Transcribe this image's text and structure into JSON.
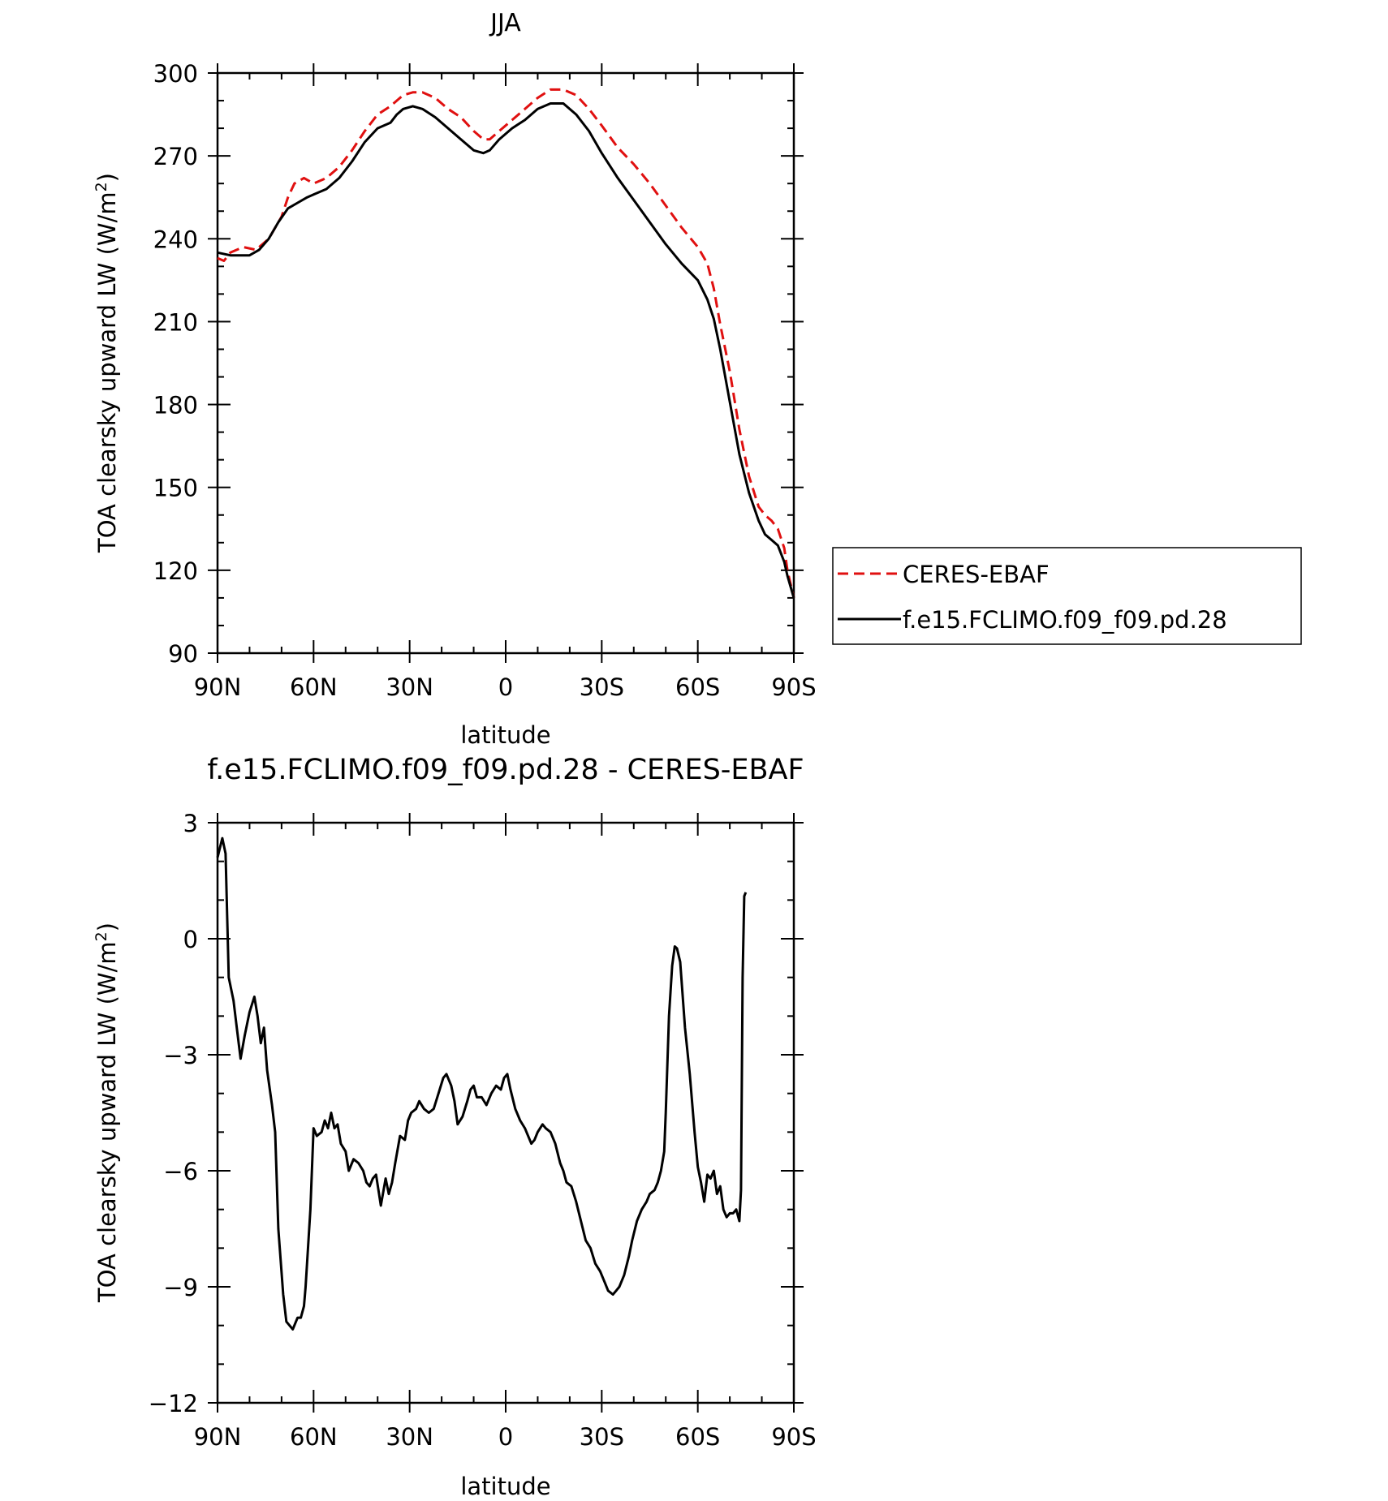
{
  "chart_data": [
    {
      "type": "line",
      "title": "JJA",
      "xlabel": "latitude",
      "ylabel": "TOA clearsky upward LW (W/m²)",
      "ylabel_main": "TOA clearsky upward LW (W/m",
      "ylabel_sup": "2",
      "ylabel_tail": ")",
      "xlim": [
        90,
        -90
      ],
      "ylim": [
        90,
        300
      ],
      "xticks": [
        90,
        60,
        30,
        0,
        -30,
        -60,
        -90
      ],
      "xtick_labels": [
        "90N",
        "60N",
        "30N",
        "0",
        "30S",
        "60S",
        "90S"
      ],
      "yticks": [
        90,
        120,
        150,
        180,
        210,
        240,
        270,
        300
      ],
      "ytick_labels": [
        "90",
        "120",
        "150",
        "180",
        "210",
        "240",
        "270",
        "300"
      ],
      "legend_position": "right",
      "series": [
        {
          "name": "CERES-EBAF",
          "color": "#e01010",
          "dash": "dashed",
          "points": [
            [
              90,
              233
            ],
            [
              88,
              232
            ],
            [
              86,
              235
            ],
            [
              82,
              237
            ],
            [
              78,
              236
            ],
            [
              74,
              240
            ],
            [
              70,
              248
            ],
            [
              68,
              255
            ],
            [
              66,
              260
            ],
            [
              63,
              262
            ],
            [
              60,
              260
            ],
            [
              56,
              262
            ],
            [
              52,
              266
            ],
            [
              48,
              272
            ],
            [
              44,
              279
            ],
            [
              40,
              285
            ],
            [
              36,
              288
            ],
            [
              34,
              290
            ],
            [
              32,
              292
            ],
            [
              29,
              293
            ],
            [
              26,
              293
            ],
            [
              22,
              291
            ],
            [
              18,
              287
            ],
            [
              14,
              284
            ],
            [
              10,
              279
            ],
            [
              7,
              276
            ],
            [
              5,
              276
            ],
            [
              2,
              279
            ],
            [
              -2,
              283
            ],
            [
              -6,
              287
            ],
            [
              -10,
              291
            ],
            [
              -14,
              294
            ],
            [
              -18,
              294
            ],
            [
              -22,
              292
            ],
            [
              -26,
              287
            ],
            [
              -30,
              281
            ],
            [
              -35,
              273
            ],
            [
              -40,
              267
            ],
            [
              -45,
              260
            ],
            [
              -50,
              252
            ],
            [
              -55,
              244
            ],
            [
              -60,
              237
            ],
            [
              -63,
              231
            ],
            [
              -65,
              222
            ],
            [
              -67,
              209
            ],
            [
              -70,
              192
            ],
            [
              -73,
              171
            ],
            [
              -76,
              154
            ],
            [
              -79,
              143
            ],
            [
              -81,
              140
            ],
            [
              -83,
              138
            ],
            [
              -85,
              135
            ],
            [
              -87,
              128
            ],
            [
              -88,
              120
            ],
            [
              -90,
              110
            ]
          ]
        },
        {
          "name": "f.e15.FCLIMO.f09_f09.pd.28",
          "color": "#000000",
          "dash": "solid",
          "points": [
            [
              90,
              235
            ],
            [
              86,
              234
            ],
            [
              84,
              234
            ],
            [
              80,
              234
            ],
            [
              77,
              236
            ],
            [
              74,
              240
            ],
            [
              71,
              246
            ],
            [
              68,
              251
            ],
            [
              65,
              253
            ],
            [
              62,
              255
            ],
            [
              60,
              256
            ],
            [
              56,
              258
            ],
            [
              52,
              262
            ],
            [
              48,
              268
            ],
            [
              44,
              275
            ],
            [
              40,
              280
            ],
            [
              36,
              282
            ],
            [
              34,
              285
            ],
            [
              32,
              287
            ],
            [
              29,
              288
            ],
            [
              26,
              287
            ],
            [
              22,
              284
            ],
            [
              18,
              280
            ],
            [
              14,
              276
            ],
            [
              10,
              272
            ],
            [
              7,
              271
            ],
            [
              5,
              272
            ],
            [
              2,
              276
            ],
            [
              -2,
              280
            ],
            [
              -6,
              283
            ],
            [
              -10,
              287
            ],
            [
              -14,
              289
            ],
            [
              -18,
              289
            ],
            [
              -22,
              285
            ],
            [
              -26,
              279
            ],
            [
              -30,
              271
            ],
            [
              -35,
              262
            ],
            [
              -40,
              254
            ],
            [
              -45,
              246
            ],
            [
              -50,
              238
            ],
            [
              -55,
              231
            ],
            [
              -60,
              225
            ],
            [
              -63,
              218
            ],
            [
              -65,
              211
            ],
            [
              -67,
              200
            ],
            [
              -70,
              181
            ],
            [
              -73,
              162
            ],
            [
              -76,
              148
            ],
            [
              -79,
              138
            ],
            [
              -81,
              133
            ],
            [
              -83,
              131
            ],
            [
              -85,
              129
            ],
            [
              -87,
              123
            ],
            [
              -88,
              118
            ],
            [
              -90,
              110
            ]
          ]
        }
      ]
    },
    {
      "type": "line",
      "title": "f.e15.FCLIMO.f09_f09.pd.28 - CERES-EBAF",
      "xlabel": "latitude",
      "ylabel": "TOA clearsky upward LW (W/m²)",
      "ylabel_main": "TOA clearsky upward LW (W/m",
      "ylabel_sup": "2",
      "ylabel_tail": ")",
      "xlim": [
        90,
        -90
      ],
      "ylim": [
        -12,
        3
      ],
      "xticks": [
        90,
        60,
        30,
        0,
        -30,
        -60,
        -90
      ],
      "xtick_labels": [
        "90N",
        "60N",
        "30N",
        "0",
        "30S",
        "60S",
        "90S"
      ],
      "yticks": [
        -12,
        -9,
        -6,
        -3,
        0,
        3
      ],
      "ytick_labels": [
        "−12",
        "−9",
        "−6",
        "−3",
        "0",
        "3"
      ],
      "series": [
        {
          "color": "#000000",
          "dash": "solid",
          "points": [
            [
              90,
              2.1
            ],
            [
              88.5,
              2.6
            ],
            [
              87.5,
              2.2
            ],
            [
              86.5,
              -1
            ],
            [
              85,
              -1.6
            ],
            [
              84,
              -2.3
            ],
            [
              82.8,
              -3.1
            ],
            [
              81.5,
              -2.5
            ],
            [
              80,
              -1.9
            ],
            [
              78.5,
              -1.5
            ],
            [
              77.5,
              -2
            ],
            [
              76.5,
              -2.7
            ],
            [
              75.5,
              -2.3
            ],
            [
              74.5,
              -3.4
            ],
            [
              73,
              -4.3
            ],
            [
              72,
              -5
            ],
            [
              71,
              -7.5
            ],
            [
              69.5,
              -9.2
            ],
            [
              68.5,
              -9.9
            ],
            [
              66.5,
              -10.1
            ],
            [
              65,
              -9.8
            ],
            [
              64,
              -9.8
            ],
            [
              63,
              -9.5
            ],
            [
              62.5,
              -9
            ],
            [
              61,
              -7
            ],
            [
              60,
              -4.9
            ],
            [
              59,
              -5.1
            ],
            [
              57.5,
              -5
            ],
            [
              56.5,
              -4.7
            ],
            [
              55.5,
              -4.9
            ],
            [
              54.5,
              -4.5
            ],
            [
              53.5,
              -4.9
            ],
            [
              52.5,
              -4.8
            ],
            [
              51.5,
              -5.3
            ],
            [
              50,
              -5.5
            ],
            [
              49,
              -6
            ],
            [
              47.5,
              -5.7
            ],
            [
              46,
              -5.8
            ],
            [
              44.5,
              -6
            ],
            [
              43.5,
              -6.3
            ],
            [
              42.5,
              -6.4
            ],
            [
              41.5,
              -6.2
            ],
            [
              40.5,
              -6.1
            ],
            [
              39,
              -6.9
            ],
            [
              37.5,
              -6.2
            ],
            [
              36.5,
              -6.6
            ],
            [
              35.5,
              -6.3
            ],
            [
              34.5,
              -5.8
            ],
            [
              33,
              -5.1
            ],
            [
              31.5,
              -5.2
            ],
            [
              30.5,
              -4.7
            ],
            [
              29.5,
              -4.5
            ],
            [
              28,
              -4.4
            ],
            [
              27,
              -4.2
            ],
            [
              25.5,
              -4.4
            ],
            [
              24,
              -4.5
            ],
            [
              22.5,
              -4.4
            ],
            [
              21,
              -4
            ],
            [
              19.5,
              -3.6
            ],
            [
              18.5,
              -3.5
            ],
            [
              17,
              -3.8
            ],
            [
              16,
              -4.2
            ],
            [
              15,
              -4.8
            ],
            [
              13.5,
              -4.6
            ],
            [
              12,
              -4.2
            ],
            [
              11,
              -3.9
            ],
            [
              10,
              -3.8
            ],
            [
              9,
              -4.1
            ],
            [
              7.5,
              -4.1
            ],
            [
              6,
              -4.3
            ],
            [
              4.5,
              -4
            ],
            [
              3,
              -3.8
            ],
            [
              1.5,
              -3.9
            ],
            [
              0.5,
              -3.6
            ],
            [
              -0.5,
              -3.5
            ],
            [
              -1.5,
              -3.9
            ],
            [
              -3,
              -4.4
            ],
            [
              -4.5,
              -4.7
            ],
            [
              -6,
              -4.9
            ],
            [
              -8,
              -5.3
            ],
            [
              -9,
              -5.2
            ],
            [
              -10,
              -5
            ],
            [
              -11.5,
              -4.8
            ],
            [
              -12.5,
              -4.9
            ],
            [
              -14,
              -5
            ],
            [
              -15.5,
              -5.3
            ],
            [
              -17,
              -5.8
            ],
            [
              -18,
              -6
            ],
            [
              -19,
              -6.3
            ],
            [
              -20.5,
              -6.4
            ],
            [
              -22,
              -6.8
            ],
            [
              -23.5,
              -7.3
            ],
            [
              -25,
              -7.8
            ],
            [
              -26.5,
              -8
            ],
            [
              -28,
              -8.4
            ],
            [
              -29.5,
              -8.6
            ],
            [
              -31,
              -8.9
            ],
            [
              -32,
              -9.1
            ],
            [
              -33.5,
              -9.2
            ],
            [
              -34.5,
              -9.1
            ],
            [
              -35.5,
              -9
            ],
            [
              -37,
              -8.7
            ],
            [
              -38.5,
              -8.2
            ],
            [
              -39.5,
              -7.8
            ],
            [
              -41,
              -7.3
            ],
            [
              -42.5,
              -7
            ],
            [
              -44,
              -6.8
            ],
            [
              -45,
              -6.6
            ],
            [
              -46.5,
              -6.5
            ],
            [
              -47.5,
              -6.3
            ],
            [
              -48.5,
              -6
            ],
            [
              -49.5,
              -5.5
            ],
            [
              -50,
              -4.5
            ],
            [
              -51,
              -2
            ],
            [
              -52,
              -0.7
            ],
            [
              -52.8,
              -0.2
            ],
            [
              -53.5,
              -0.25
            ],
            [
              -54.5,
              -0.6
            ],
            [
              -56,
              -2.3
            ],
            [
              -57.5,
              -3.5
            ],
            [
              -59,
              -5
            ],
            [
              -60,
              -5.9
            ],
            [
              -61,
              -6.3
            ],
            [
              -62,
              -6.8
            ],
            [
              -63,
              -6.1
            ],
            [
              -64,
              -6.2
            ],
            [
              -65,
              -6
            ],
            [
              -66,
              -6.6
            ],
            [
              -67,
              -6.4
            ],
            [
              -68,
              -7
            ],
            [
              -69,
              -7.2
            ],
            [
              -70,
              -7.1
            ],
            [
              -71,
              -7.1
            ],
            [
              -72,
              -7
            ],
            [
              -73,
              -7.3
            ],
            [
              -73.5,
              -6.5
            ],
            [
              -74,
              -1
            ],
            [
              -74.5,
              1.1
            ],
            [
              -75,
              1.2
            ]
          ]
        }
      ]
    }
  ]
}
